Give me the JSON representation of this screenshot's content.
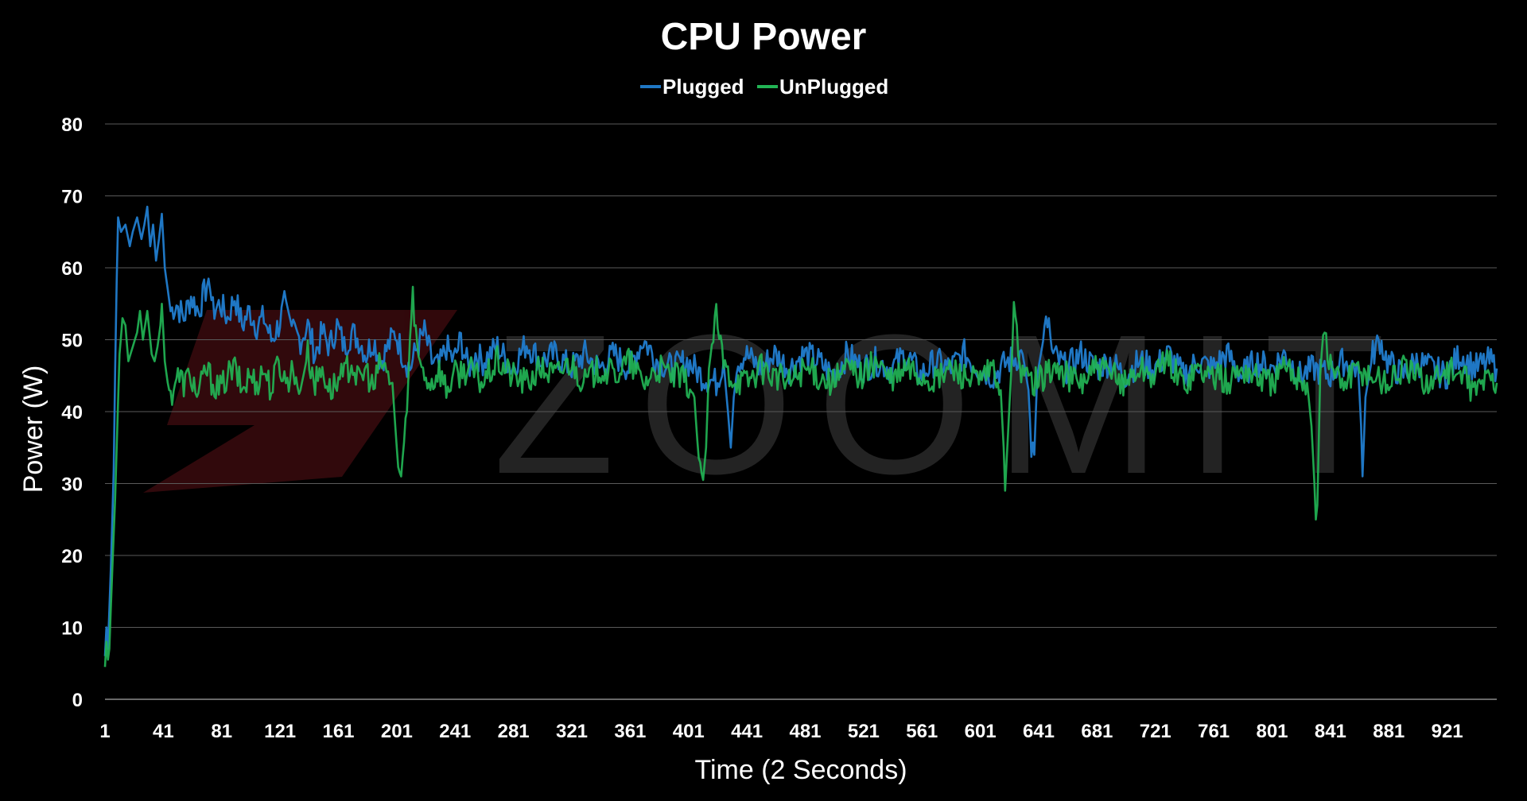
{
  "chart_data": {
    "type": "line",
    "title": "CPU Power",
    "xlabel": "Time (2 Seconds)",
    "ylabel": "Power (W)",
    "xlim": [
      1,
      955
    ],
    "ylim": [
      0,
      80
    ],
    "y_ticks": [
      "0",
      "10",
      "20",
      "30",
      "40",
      "50",
      "60",
      "70",
      "80"
    ],
    "x_ticks": [
      "1",
      "41",
      "81",
      "121",
      "161",
      "201",
      "241",
      "281",
      "321",
      "361",
      "401",
      "441",
      "481",
      "521",
      "561",
      "601",
      "641",
      "681",
      "721",
      "761",
      "801",
      "841",
      "881",
      "921"
    ],
    "grid": true,
    "legend_position": "top-center",
    "watermark": "ZOOMIT",
    "series": [
      {
        "name": "Plugged",
        "color": "#1f77c4",
        "points": [
          [
            1,
            6
          ],
          [
            2,
            10
          ],
          [
            3,
            7
          ],
          [
            5,
            18
          ],
          [
            7,
            32
          ],
          [
            8,
            46
          ],
          [
            9,
            58
          ],
          [
            10,
            67
          ],
          [
            12,
            65
          ],
          [
            15,
            66
          ],
          [
            18,
            63
          ],
          [
            20,
            65
          ],
          [
            23,
            67
          ],
          [
            26,
            64
          ],
          [
            28,
            66
          ],
          [
            30,
            68.5
          ],
          [
            32,
            63
          ],
          [
            34,
            66
          ],
          [
            36,
            61
          ],
          [
            38,
            64
          ],
          [
            40,
            67.5
          ],
          [
            42,
            60
          ],
          [
            44,
            57
          ],
          [
            46,
            54
          ],
          [
            50,
            55
          ],
          [
            55,
            53
          ],
          [
            60,
            56
          ],
          [
            65,
            54
          ],
          [
            70,
            57
          ],
          [
            72,
            58.5
          ],
          [
            75,
            54
          ],
          [
            80,
            55
          ],
          [
            85,
            53
          ],
          [
            90,
            56
          ],
          [
            95,
            52
          ],
          [
            100,
            54
          ],
          [
            105,
            52
          ],
          [
            110,
            53
          ],
          [
            115,
            50
          ],
          [
            120,
            52
          ],
          [
            125,
            55.5
          ],
          [
            130,
            51
          ],
          [
            135,
            50
          ],
          [
            140,
            52
          ],
          [
            145,
            48
          ],
          [
            150,
            51
          ],
          [
            155,
            49
          ],
          [
            160,
            52
          ],
          [
            165,
            49
          ],
          [
            170,
            51
          ],
          [
            175,
            50
          ],
          [
            180,
            48
          ],
          [
            185,
            50
          ],
          [
            190,
            47
          ],
          [
            195,
            49
          ],
          [
            200,
            51
          ],
          [
            205,
            48
          ],
          [
            210,
            46
          ],
          [
            215,
            49
          ],
          [
            220,
            51
          ],
          [
            225,
            47
          ],
          [
            230,
            46
          ],
          [
            235,
            49
          ],
          [
            240,
            47
          ],
          [
            245,
            50
          ],
          [
            250,
            46
          ],
          [
            255,
            48
          ],
          [
            260,
            47
          ],
          [
            270,
            49
          ],
          [
            280,
            46
          ],
          [
            290,
            49.5
          ],
          [
            300,
            47
          ],
          [
            310,
            48
          ],
          [
            320,
            46
          ],
          [
            330,
            48
          ],
          [
            340,
            46
          ],
          [
            350,
            48
          ],
          [
            360,
            46
          ],
          [
            370,
            50
          ],
          [
            380,
            47
          ],
          [
            390,
            46
          ],
          [
            400,
            47
          ],
          [
            410,
            45
          ],
          [
            420,
            44
          ],
          [
            425,
            47
          ],
          [
            428,
            40
          ],
          [
            430,
            35
          ],
          [
            432,
            42
          ],
          [
            435,
            47
          ],
          [
            440,
            48
          ],
          [
            450,
            46
          ],
          [
            460,
            48
          ],
          [
            470,
            46
          ],
          [
            480,
            48
          ],
          [
            490,
            47
          ],
          [
            500,
            45
          ],
          [
            510,
            48
          ],
          [
            520,
            46
          ],
          [
            530,
            47
          ],
          [
            540,
            46
          ],
          [
            550,
            48
          ],
          [
            560,
            45
          ],
          [
            570,
            47
          ],
          [
            580,
            46
          ],
          [
            590,
            48
          ],
          [
            600,
            46
          ],
          [
            610,
            45
          ],
          [
            620,
            47
          ],
          [
            630,
            48
          ],
          [
            634,
            43
          ],
          [
            636,
            35
          ],
          [
            638,
            34
          ],
          [
            640,
            45
          ],
          [
            645,
            51
          ],
          [
            648,
            53
          ],
          [
            650,
            48
          ],
          [
            660,
            46
          ],
          [
            670,
            48
          ],
          [
            680,
            46
          ],
          [
            690,
            47
          ],
          [
            700,
            45
          ],
          [
            710,
            47
          ],
          [
            720,
            46
          ],
          [
            730,
            48
          ],
          [
            740,
            45
          ],
          [
            750,
            47
          ],
          [
            760,
            46
          ],
          [
            770,
            48
          ],
          [
            780,
            45
          ],
          [
            790,
            47
          ],
          [
            800,
            46
          ],
          [
            810,
            48
          ],
          [
            820,
            45
          ],
          [
            830,
            46
          ],
          [
            840,
            45
          ],
          [
            850,
            47
          ],
          [
            860,
            46
          ],
          [
            862,
            38
          ],
          [
            863,
            31
          ],
          [
            865,
            42
          ],
          [
            870,
            48
          ],
          [
            875,
            50
          ],
          [
            880,
            47
          ],
          [
            890,
            45
          ],
          [
            900,
            47
          ],
          [
            910,
            46
          ],
          [
            920,
            45
          ],
          [
            930,
            48
          ],
          [
            940,
            46
          ],
          [
            950,
            47
          ],
          [
            955,
            46
          ]
        ]
      },
      {
        "name": "UnPlugged",
        "color": "#22b455",
        "points": [
          [
            1,
            4.5
          ],
          [
            2,
            8
          ],
          [
            3,
            5.5
          ],
          [
            4,
            7
          ],
          [
            6,
            18
          ],
          [
            8,
            28
          ],
          [
            9,
            35
          ],
          [
            11,
            48
          ],
          [
            13,
            53
          ],
          [
            15,
            52
          ],
          [
            17,
            47
          ],
          [
            20,
            49
          ],
          [
            23,
            51
          ],
          [
            25,
            54
          ],
          [
            27,
            50
          ],
          [
            30,
            54
          ],
          [
            33,
            48
          ],
          [
            35,
            47
          ],
          [
            37,
            49
          ],
          [
            39,
            52
          ],
          [
            40,
            55
          ],
          [
            42,
            47
          ],
          [
            44,
            44
          ],
          [
            46,
            42
          ],
          [
            50,
            45
          ],
          [
            55,
            44
          ],
          [
            60,
            45
          ],
          [
            65,
            42
          ],
          [
            70,
            46
          ],
          [
            75,
            44
          ],
          [
            80,
            43
          ],
          [
            85,
            45
          ],
          [
            90,
            46
          ],
          [
            95,
            43
          ],
          [
            100,
            45
          ],
          [
            105,
            44
          ],
          [
            110,
            46
          ],
          [
            115,
            43
          ],
          [
            120,
            47
          ],
          [
            125,
            44
          ],
          [
            130,
            46
          ],
          [
            135,
            43
          ],
          [
            140,
            48
          ],
          [
            145,
            44
          ],
          [
            150,
            46
          ],
          [
            155,
            43
          ],
          [
            160,
            44
          ],
          [
            165,
            45
          ],
          [
            170,
            47
          ],
          [
            175,
            44
          ],
          [
            180,
            46
          ],
          [
            185,
            43
          ],
          [
            190,
            47
          ],
          [
            195,
            45
          ],
          [
            198,
            44
          ],
          [
            200,
            38
          ],
          [
            202,
            32
          ],
          [
            204,
            31
          ],
          [
            206,
            36
          ],
          [
            208,
            40
          ],
          [
            210,
            50
          ],
          [
            212,
            56
          ],
          [
            214,
            52
          ],
          [
            216,
            47
          ],
          [
            220,
            45
          ],
          [
            225,
            44
          ],
          [
            230,
            46
          ],
          [
            235,
            43
          ],
          [
            240,
            45
          ],
          [
            250,
            46
          ],
          [
            260,
            44
          ],
          [
            270,
            47
          ],
          [
            280,
            45
          ],
          [
            290,
            44
          ],
          [
            300,
            46
          ],
          [
            310,
            45
          ],
          [
            320,
            47
          ],
          [
            330,
            44
          ],
          [
            340,
            46
          ],
          [
            350,
            45
          ],
          [
            360,
            47
          ],
          [
            370,
            44
          ],
          [
            380,
            46
          ],
          [
            390,
            45
          ],
          [
            400,
            44
          ],
          [
            405,
            42
          ],
          [
            407,
            36
          ],
          [
            409,
            31
          ],
          [
            411,
            30.5
          ],
          [
            413,
            35
          ],
          [
            415,
            46
          ],
          [
            418,
            51
          ],
          [
            420,
            53
          ],
          [
            423,
            49
          ],
          [
            426,
            46
          ],
          [
            430,
            45
          ],
          [
            440,
            44
          ],
          [
            450,
            46
          ],
          [
            460,
            45
          ],
          [
            470,
            44
          ],
          [
            480,
            46
          ],
          [
            490,
            45
          ],
          [
            500,
            44
          ],
          [
            510,
            46
          ],
          [
            520,
            45
          ],
          [
            530,
            47
          ],
          [
            540,
            44
          ],
          [
            550,
            46
          ],
          [
            560,
            45
          ],
          [
            570,
            44
          ],
          [
            580,
            46
          ],
          [
            590,
            45
          ],
          [
            600,
            44
          ],
          [
            610,
            46
          ],
          [
            615,
            43
          ],
          [
            617,
            35
          ],
          [
            618,
            29
          ],
          [
            620,
            37
          ],
          [
            622,
            45
          ],
          [
            624,
            53.5
          ],
          [
            626,
            50
          ],
          [
            628,
            47
          ],
          [
            630,
            45
          ],
          [
            640,
            44
          ],
          [
            650,
            46
          ],
          [
            660,
            45
          ],
          [
            670,
            44
          ],
          [
            680,
            46
          ],
          [
            690,
            45
          ],
          [
            700,
            44
          ],
          [
            710,
            46
          ],
          [
            720,
            45
          ],
          [
            730,
            47
          ],
          [
            740,
            44
          ],
          [
            750,
            46
          ],
          [
            760,
            45
          ],
          [
            770,
            44
          ],
          [
            780,
            46
          ],
          [
            790,
            45
          ],
          [
            800,
            44
          ],
          [
            810,
            46
          ],
          [
            820,
            45
          ],
          [
            825,
            44
          ],
          [
            828,
            38
          ],
          [
            830,
            30
          ],
          [
            831,
            24.5
          ],
          [
            832,
            27
          ],
          [
            834,
            45
          ],
          [
            836,
            51.5
          ],
          [
            838,
            50
          ],
          [
            840,
            47
          ],
          [
            845,
            45
          ],
          [
            850,
            44
          ],
          [
            860,
            46
          ],
          [
            870,
            45
          ],
          [
            880,
            44
          ],
          [
            890,
            46
          ],
          [
            900,
            45
          ],
          [
            910,
            44
          ],
          [
            920,
            46
          ],
          [
            930,
            45
          ],
          [
            940,
            43
          ],
          [
            950,
            45
          ],
          [
            955,
            44
          ]
        ]
      }
    ]
  }
}
